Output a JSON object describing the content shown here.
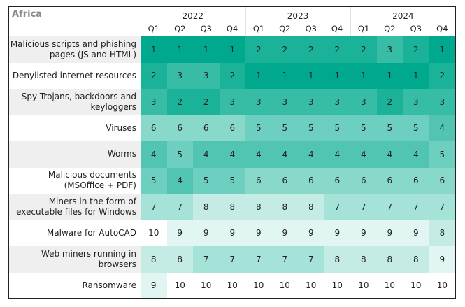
{
  "chart_data": {
    "type": "heatmap",
    "title": "Africa",
    "years": [
      "2022",
      "2023",
      "2024"
    ],
    "quarters": [
      "Q1",
      "Q2",
      "Q3",
      "Q4"
    ],
    "rows": [
      {
        "label": "Malicious scripts and phishing pages (JS and HTML)",
        "values": [
          1,
          1,
          1,
          1,
          2,
          2,
          2,
          2,
          2,
          3,
          2,
          1
        ]
      },
      {
        "label": "Denylisted internet resources",
        "values": [
          2,
          3,
          3,
          2,
          1,
          1,
          1,
          1,
          1,
          1,
          1,
          2
        ]
      },
      {
        "label": "Spy Trojans, backdoors and keyloggers",
        "values": [
          3,
          2,
          2,
          3,
          3,
          3,
          3,
          3,
          3,
          2,
          3,
          3
        ]
      },
      {
        "label": "Viruses",
        "values": [
          6,
          6,
          6,
          6,
          5,
          5,
          5,
          5,
          5,
          5,
          5,
          4
        ]
      },
      {
        "label": "Worms",
        "values": [
          4,
          5,
          4,
          4,
          4,
          4,
          4,
          4,
          4,
          4,
          4,
          5
        ]
      },
      {
        "label": "Malicious documents (MSOffice + PDF)",
        "values": [
          5,
          4,
          5,
          5,
          6,
          6,
          6,
          6,
          6,
          6,
          6,
          6
        ]
      },
      {
        "label": "Miners in the form of executable files for Windows",
        "values": [
          7,
          7,
          8,
          8,
          8,
          8,
          8,
          7,
          7,
          7,
          7,
          7
        ]
      },
      {
        "label": "Malware for AutoCAD",
        "values": [
          10,
          9,
          9,
          9,
          9,
          9,
          9,
          9,
          9,
          9,
          9,
          8
        ]
      },
      {
        "label": "Web miners running in browsers",
        "values": [
          8,
          8,
          7,
          7,
          7,
          7,
          7,
          8,
          8,
          8,
          8,
          9
        ]
      },
      {
        "label": "Ransomware",
        "values": [
          9,
          10,
          10,
          10,
          10,
          10,
          10,
          10,
          10,
          10,
          10,
          10
        ]
      }
    ],
    "rank_colors": [
      "#00a88e",
      "#1bb29a",
      "#37bca6",
      "#52c5b2",
      "#6dcfbf",
      "#89d9cb",
      "#a5e2d8",
      "#c4ebe4",
      "#e1f5f2",
      "#ffffff"
    ]
  }
}
